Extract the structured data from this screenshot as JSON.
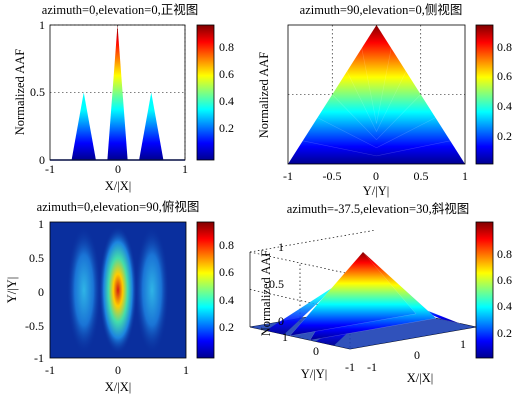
{
  "chart_data": [
    {
      "type": "area",
      "view": "front",
      "title": "azimuth=0,elevation=0,正视图",
      "xlabel": "X/|X|",
      "ylabel": "Normalized AAF",
      "xlim": [
        -1,
        1
      ],
      "ylim": [
        0,
        1
      ],
      "xticks": [
        "-1",
        "0",
        "1"
      ],
      "yticks": [
        "0",
        "0.5",
        "1"
      ],
      "grid": "dotted",
      "series": [
        {
          "x": [
            -0.68,
            -0.5,
            -0.32
          ],
          "y": [
            0,
            0.5,
            0
          ]
        },
        {
          "x": [
            -0.15,
            0,
            0.15
          ],
          "y": [
            0,
            1,
            0
          ]
        },
        {
          "x": [
            0.32,
            0.5,
            0.68
          ],
          "y": [
            0,
            0.5,
            0
          ]
        }
      ],
      "colorbar": {
        "ticks": [
          "0.2",
          "0.4",
          "0.6",
          "0.8"
        ],
        "range": [
          0,
          1
        ],
        "colormap": "jet"
      }
    },
    {
      "type": "area",
      "view": "side",
      "title": "azimuth=90,elevation=0,侧视图",
      "xlabel": "Y/|Y|",
      "ylabel": "Normalized AAF",
      "xlim": [
        -1,
        1
      ],
      "ylim": [
        0,
        1
      ],
      "xticks": [
        "-1",
        "-0.5",
        "0",
        "0.5",
        "1"
      ],
      "yticks": [],
      "grid": "dotted",
      "series": [
        {
          "x": [
            -1,
            0,
            1
          ],
          "y": [
            0,
            1,
            0
          ]
        }
      ],
      "colorbar": {
        "ticks": [
          "0.2",
          "0.4",
          "0.6",
          "0.8"
        ],
        "range": [
          0,
          1
        ],
        "colormap": "jet"
      }
    },
    {
      "type": "heatmap",
      "view": "top",
      "title": "azimuth=0,elevation=90,俯视图",
      "xlabel": "X/|X|",
      "ylabel": "Y/|Y|",
      "xlim": [
        -1,
        1
      ],
      "ylim": [
        -1,
        1
      ],
      "xticks": [
        "-1",
        "0",
        "1"
      ],
      "yticks": [
        "-1",
        "-0.5",
        "0",
        "0.5",
        "1"
      ],
      "peaks": [
        {
          "x": -0.5,
          "y": 0,
          "value": 0.5
        },
        {
          "x": 0,
          "y": 0,
          "value": 1
        },
        {
          "x": 0.5,
          "y": 0,
          "value": 0.5
        }
      ],
      "colorbar": {
        "ticks": [
          "0.2",
          "0.4",
          "0.6",
          "0.8"
        ],
        "range": [
          0,
          1
        ],
        "colormap": "jet"
      }
    },
    {
      "type": "area",
      "view": "oblique 3D surface",
      "title": "azimuth=-37.5,elevation=30,斜视图",
      "xlabel": "X/|X|",
      "ylabel": "Y/|Y|",
      "zlabel": "Normalized AAF",
      "xlim": [
        -1,
        1
      ],
      "ylim": [
        -1,
        1
      ],
      "zlim": [
        0,
        1
      ],
      "xticks": [
        "-1",
        "0",
        "1"
      ],
      "yticks": [
        "-1",
        "0",
        "1"
      ],
      "zticks": [
        "0",
        "0.5",
        "1"
      ],
      "colorbar": {
        "ticks": [
          "0.2",
          "0.4",
          "0.6",
          "0.8"
        ],
        "range": [
          0,
          1
        ],
        "colormap": "jet"
      }
    }
  ]
}
